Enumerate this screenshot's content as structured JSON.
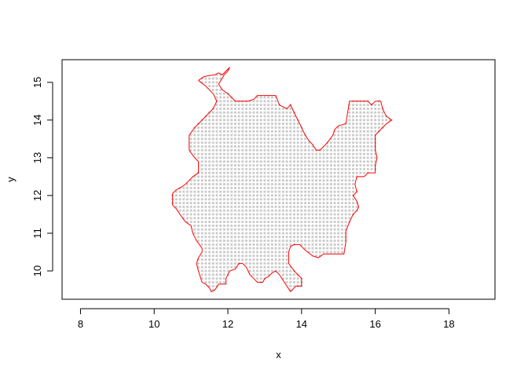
{
  "chart_data": {
    "type": "scatter",
    "title": "",
    "xlabel": "x",
    "ylabel": "y",
    "xlim": [
      7.5,
      19.25
    ],
    "ylim": [
      9.25,
      15.6
    ],
    "x_ticks": [
      8,
      10,
      12,
      14,
      16,
      18
    ],
    "y_ticks": [
      10,
      11,
      12,
      13,
      14,
      15
    ],
    "grid": false,
    "legend": "none",
    "point_color": "#cccccc",
    "boundary_color": "#ff0000",
    "grid_spacing": 0.1,
    "series": [
      {
        "type": "line",
        "values": [
          [
            11.2,
            15.05
          ],
          [
            11.35,
            15.15
          ],
          [
            11.5,
            15.18
          ],
          [
            11.65,
            15.2
          ],
          [
            11.75,
            15.25
          ],
          [
            11.85,
            15.2
          ],
          [
            11.95,
            15.3
          ],
          [
            12.05,
            15.4
          ],
          [
            12.0,
            15.3
          ],
          [
            11.9,
            15.2
          ],
          [
            11.75,
            14.95
          ],
          [
            11.85,
            14.8
          ],
          [
            12.0,
            14.7
          ],
          [
            12.2,
            14.5
          ],
          [
            12.55,
            14.5
          ],
          [
            12.7,
            14.55
          ],
          [
            12.8,
            14.65
          ],
          [
            13.3,
            14.65
          ],
          [
            13.4,
            14.4
          ],
          [
            13.5,
            14.35
          ],
          [
            13.6,
            14.3
          ],
          [
            13.7,
            14.4
          ],
          [
            13.8,
            14.2
          ],
          [
            13.9,
            14.0
          ],
          [
            14.0,
            13.8
          ],
          [
            14.1,
            13.6
          ],
          [
            14.2,
            13.45
          ],
          [
            14.3,
            13.35
          ],
          [
            14.4,
            13.2
          ],
          [
            14.5,
            13.2
          ],
          [
            14.7,
            13.4
          ],
          [
            14.85,
            13.6
          ],
          [
            14.9,
            13.75
          ],
          [
            15.0,
            13.85
          ],
          [
            15.2,
            13.9
          ],
          [
            15.3,
            14.5
          ],
          [
            15.8,
            14.5
          ],
          [
            15.9,
            14.4
          ],
          [
            16.0,
            14.5
          ],
          [
            16.15,
            14.5
          ],
          [
            16.2,
            14.3
          ],
          [
            16.3,
            14.1
          ],
          [
            16.45,
            14.0
          ],
          [
            16.3,
            13.9
          ],
          [
            16.1,
            13.7
          ],
          [
            16.0,
            13.6
          ],
          [
            16.0,
            13.2
          ],
          [
            16.05,
            13.0
          ],
          [
            16.0,
            12.8
          ],
          [
            16.0,
            12.6
          ],
          [
            15.8,
            12.6
          ],
          [
            15.7,
            12.5
          ],
          [
            15.5,
            12.5
          ],
          [
            15.45,
            12.3
          ],
          [
            15.5,
            12.1
          ],
          [
            15.4,
            12.0
          ],
          [
            15.5,
            11.85
          ],
          [
            15.55,
            11.7
          ],
          [
            15.5,
            11.6
          ],
          [
            15.4,
            11.5
          ],
          [
            15.3,
            11.3
          ],
          [
            15.2,
            11.05
          ],
          [
            15.2,
            10.75
          ],
          [
            15.15,
            10.45
          ],
          [
            14.6,
            10.45
          ],
          [
            14.45,
            10.35
          ],
          [
            14.3,
            10.4
          ],
          [
            14.1,
            10.55
          ],
          [
            13.95,
            10.7
          ],
          [
            13.8,
            10.7
          ],
          [
            13.7,
            10.65
          ],
          [
            13.65,
            10.5
          ],
          [
            13.65,
            10.2
          ],
          [
            13.8,
            10.0
          ],
          [
            13.9,
            9.9
          ],
          [
            14.0,
            9.8
          ],
          [
            14.0,
            9.6
          ],
          [
            13.85,
            9.6
          ],
          [
            13.75,
            9.5
          ],
          [
            13.7,
            9.45
          ],
          [
            13.6,
            9.6
          ],
          [
            13.5,
            9.75
          ],
          [
            13.4,
            9.9
          ],
          [
            13.3,
            10.0
          ],
          [
            13.2,
            9.95
          ],
          [
            13.1,
            9.85
          ],
          [
            13.0,
            9.8
          ],
          [
            12.95,
            9.7
          ],
          [
            12.8,
            9.7
          ],
          [
            12.7,
            9.8
          ],
          [
            12.6,
            9.9
          ],
          [
            12.5,
            10.1
          ],
          [
            12.4,
            10.2
          ],
          [
            12.3,
            10.2
          ],
          [
            12.2,
            10.05
          ],
          [
            12.05,
            10.0
          ],
          [
            11.95,
            9.8
          ],
          [
            11.95,
            9.65
          ],
          [
            11.75,
            9.65
          ],
          [
            11.65,
            9.5
          ],
          [
            11.55,
            9.45
          ],
          [
            11.5,
            9.55
          ],
          [
            11.4,
            9.65
          ],
          [
            11.3,
            9.7
          ],
          [
            11.25,
            9.85
          ],
          [
            11.2,
            10.0
          ],
          [
            11.15,
            10.2
          ],
          [
            11.2,
            10.35
          ],
          [
            11.3,
            10.5
          ],
          [
            11.3,
            10.6
          ],
          [
            11.15,
            10.8
          ],
          [
            11.05,
            11.0
          ],
          [
            11.0,
            11.2
          ],
          [
            10.85,
            11.3
          ],
          [
            10.7,
            11.5
          ],
          [
            10.6,
            11.65
          ],
          [
            10.5,
            11.75
          ],
          [
            10.5,
            12.05
          ],
          [
            10.6,
            12.15
          ],
          [
            10.7,
            12.2
          ],
          [
            10.85,
            12.3
          ],
          [
            10.95,
            12.4
          ],
          [
            11.05,
            12.5
          ],
          [
            11.2,
            12.6
          ],
          [
            11.2,
            12.9
          ],
          [
            11.1,
            13.0
          ],
          [
            10.95,
            13.2
          ],
          [
            10.95,
            13.6
          ],
          [
            11.1,
            13.8
          ],
          [
            11.3,
            14.0
          ],
          [
            11.5,
            14.2
          ],
          [
            11.6,
            14.3
          ],
          [
            11.7,
            14.5
          ],
          [
            11.6,
            14.7
          ],
          [
            11.4,
            14.9
          ],
          [
            11.2,
            15.05
          ]
        ]
      }
    ]
  }
}
